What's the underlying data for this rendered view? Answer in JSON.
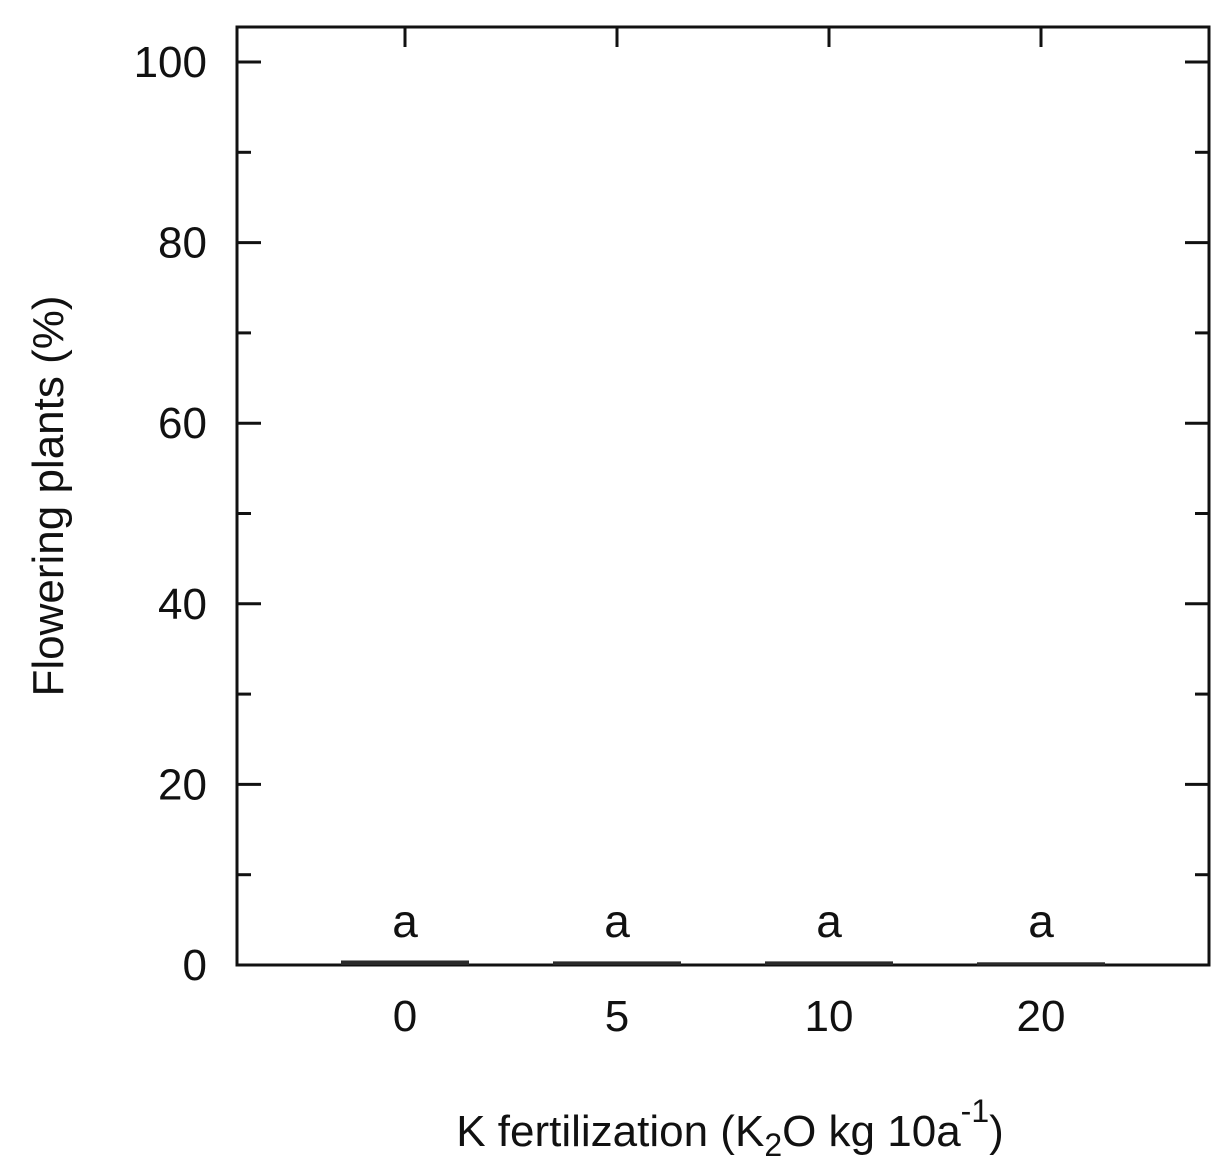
{
  "chart_data": {
    "type": "bar",
    "categories": [
      "0",
      "5",
      "10",
      "20"
    ],
    "values": [
      0.5,
      0.4,
      0.4,
      0.3
    ],
    "bar_labels": [
      "a",
      "a",
      "a",
      "a"
    ],
    "ylabel": "Flowering plants (%)",
    "xlabel": {
      "pre": "K fertilization (K",
      "sub": "2",
      "mid": "O kg 10a",
      "sup": "-1",
      "post": ")"
    },
    "ylim": [
      0,
      104
    ],
    "y_ticks": [
      0,
      20,
      40,
      60,
      80,
      100
    ],
    "y_tick_labels": [
      "0",
      "20",
      "40",
      "60",
      "80",
      "100"
    ],
    "grid": false,
    "legend": "none"
  }
}
